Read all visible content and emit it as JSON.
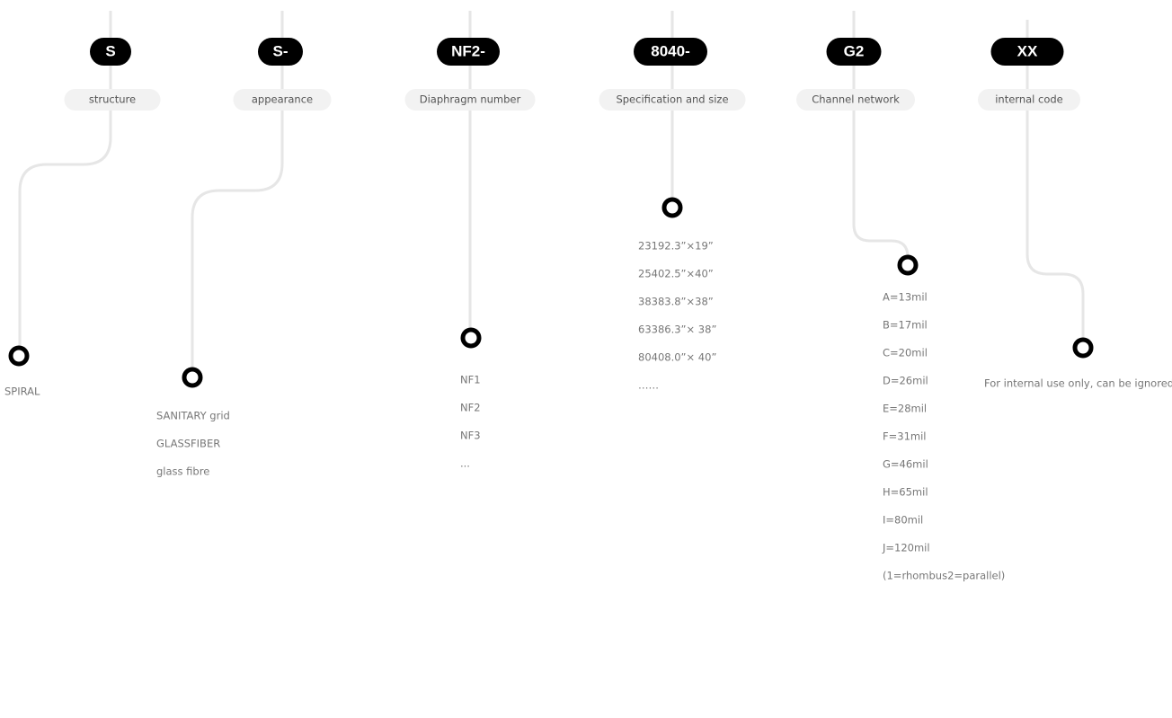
{
  "columns": [
    {
      "code": "S",
      "label": "structure",
      "items": [
        "SPIRAL"
      ]
    },
    {
      "code": "S-",
      "label": "appearance",
      "items": [
        "SANITARY grid",
        "GLASSFIBER",
        "glass fibre"
      ]
    },
    {
      "code": "NF2-",
      "label": "Diaphragm number",
      "items": [
        "NF1",
        "NF2",
        "NF3",
        "..."
      ]
    },
    {
      "code": "8040-",
      "label": "Specification and size",
      "items": [
        "23192.3”×19”",
        "25402.5”×40”",
        "38383.8”×38”",
        "63386.3”× 38”",
        "80408.0”× 40”",
        "……"
      ]
    },
    {
      "code": "G2",
      "label": "Channel network",
      "items": [
        "A=13mil",
        "B=17mil",
        "C=20mil",
        "D=26mil",
        "E=28mil",
        "F=31mil",
        "G=46mil",
        "H=65mil",
        "I=80mil",
        "J=120mil",
        "(1=rhombus2=parallel)"
      ]
    },
    {
      "code": "XX",
      "label": "internal code",
      "items": [
        "For internal use only, can be ignored"
      ]
    }
  ]
}
